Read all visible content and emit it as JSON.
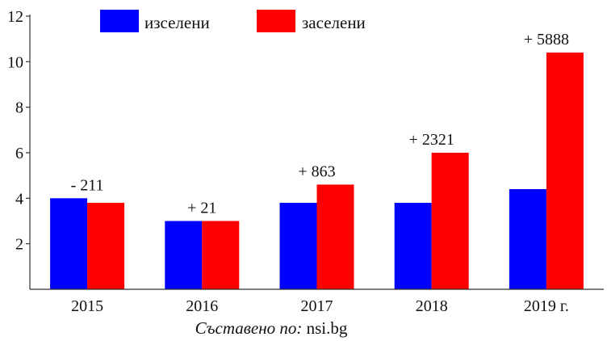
{
  "chart_data": {
    "type": "bar",
    "categories": [
      "2015",
      "2016",
      "2017",
      "2018",
      "2019 г."
    ],
    "series": [
      {
        "name": "изселени",
        "color": "#0000ff",
        "values": [
          4.0,
          3.0,
          3.8,
          3.8,
          4.4
        ]
      },
      {
        "name": "заселени",
        "color": "#ff0000",
        "values": [
          3.8,
          3.0,
          4.6,
          6.0,
          10.4
        ]
      }
    ],
    "annotations": [
      "- 211",
      "+ 21",
      "+ 863",
      "+ 2321",
      "+ 5888"
    ],
    "yticks": [
      2,
      4,
      6,
      8,
      10,
      12
    ],
    "ylim": [
      0,
      12
    ],
    "grid": false,
    "legend_position": "top"
  },
  "source": {
    "label": "Съставено по:",
    "value": "nsi.bg"
  }
}
